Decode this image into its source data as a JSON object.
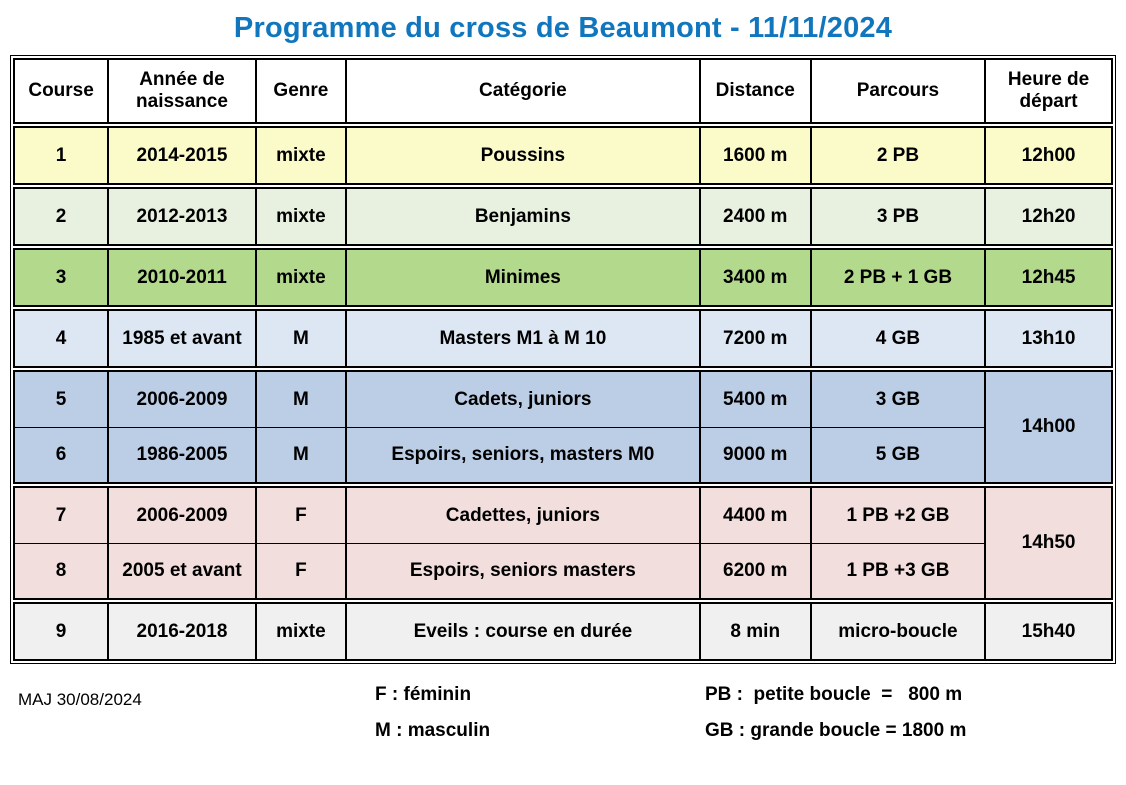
{
  "title": "Programme du cross de Beaumont - 11/11/2024",
  "accent_color": "#1076be",
  "table": {
    "headers": {
      "course": "Course",
      "annee": "Année de naissance",
      "genre": "Genre",
      "categorie": "Catégorie",
      "distance": "Distance",
      "parcours": "Parcours",
      "heure": "Heure de départ"
    },
    "groups": [
      {
        "color": "#fbfac9",
        "heure": "12h00",
        "rows": [
          {
            "course": "1",
            "annee": "2014-2015",
            "genre": "mixte",
            "categorie": "Poussins",
            "distance": "1600 m",
            "parcours": "2 PB"
          }
        ]
      },
      {
        "color": "#e8f1e0",
        "heure": "12h20",
        "rows": [
          {
            "course": "2",
            "annee": "2012-2013",
            "genre": "mixte",
            "categorie": "Benjamins",
            "distance": "2400 m",
            "parcours": "3 PB"
          }
        ]
      },
      {
        "color": "#b3d98c",
        "heure": "12h45",
        "rows": [
          {
            "course": "3",
            "annee": "2010-2011",
            "genre": "mixte",
            "categorie": "Minimes",
            "distance": "3400 m",
            "parcours": "2 PB + 1 GB"
          }
        ]
      },
      {
        "color": "#dde7f3",
        "heure": "13h10",
        "rows": [
          {
            "course": "4",
            "annee": "1985 et avant",
            "genre": "M",
            "categorie": "Masters M1 à M 10",
            "distance": "7200 m",
            "parcours": "4 GB"
          }
        ]
      },
      {
        "color": "#bccee6",
        "heure": "14h00",
        "rows": [
          {
            "course": "5",
            "annee": "2006-2009",
            "genre": "M",
            "categorie": "Cadets, juniors",
            "distance": "5400 m",
            "parcours": "3 GB"
          },
          {
            "course": "6",
            "annee": "1986-2005",
            "genre": "M",
            "categorie": "Espoirs, seniors, masters M0",
            "distance": "9000 m",
            "parcours": "5 GB"
          }
        ]
      },
      {
        "color": "#f2dedd",
        "heure": "14h50",
        "rows": [
          {
            "course": "7",
            "annee": "2006-2009",
            "genre": "F",
            "categorie": "Cadettes, juniors",
            "distance": "4400 m",
            "parcours": "1 PB +2 GB"
          },
          {
            "course": "8",
            "annee": "2005 et avant",
            "genre": "F",
            "categorie": "Espoirs, seniors masters",
            "distance": "6200 m",
            "parcours": "1 PB +3 GB"
          }
        ]
      },
      {
        "color": "#f0f0f0",
        "heure": "15h40",
        "rows": [
          {
            "course": "9",
            "annee": "2016-2018",
            "genre": "mixte",
            "categorie": "Eveils : course en durée",
            "distance": "8 min",
            "parcours": "micro-boucle"
          }
        ]
      }
    ]
  },
  "footer": {
    "maj": "MAJ 30/08/2024",
    "legend_f": "F : féminin",
    "legend_m": "M : masculin",
    "legend_pb": "PB :  petite boucle  =   800 m",
    "legend_gb": "GB : grande boucle = 1800 m"
  }
}
